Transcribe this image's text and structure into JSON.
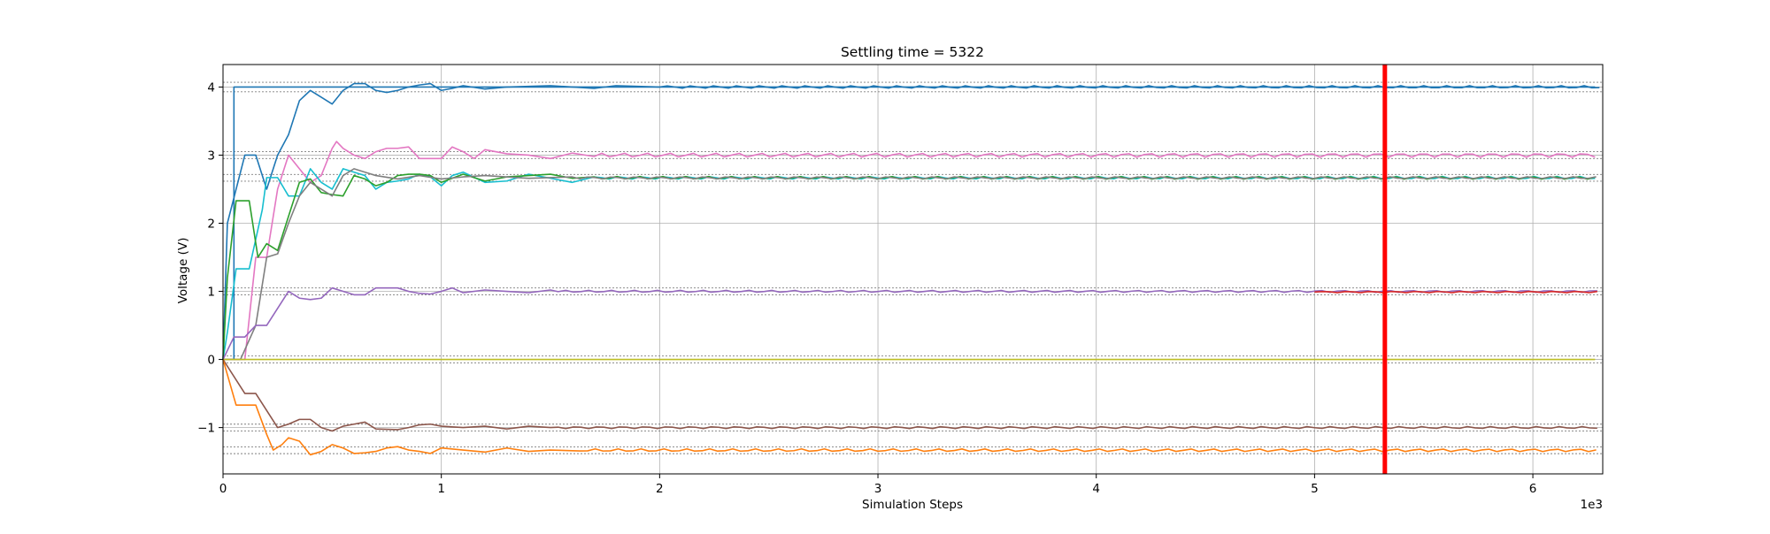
{
  "chart_data": {
    "type": "line",
    "title": "Settling time = 5322",
    "xlabel": "Simulation Steps",
    "ylabel": "Voltage (V)",
    "x_multiplier_label": "1e3",
    "xlim": [
      0,
      6.32
    ],
    "ylim": [
      -1.68,
      4.33
    ],
    "xticks": [
      0,
      1,
      2,
      3,
      4,
      5,
      6
    ],
    "xtick_labels": [
      "0",
      "1",
      "2",
      "3",
      "4",
      "5",
      "6"
    ],
    "yticks": [
      -1,
      0,
      1,
      2,
      3,
      4
    ],
    "ytick_labels": [
      "−1",
      "0",
      "1",
      "2",
      "3",
      "4"
    ],
    "grid": true,
    "settling_time_line": {
      "x": 5.322,
      "color": "#ff0000"
    },
    "tolerance_bands": [
      {
        "center": 4.0,
        "half_width": 0.07
      },
      {
        "center": 3.0,
        "half_width": 0.05
      },
      {
        "center": 2.667,
        "half_width": 0.05
      },
      {
        "center": 1.0,
        "half_width": 0.05
      },
      {
        "center": 0.0,
        "half_width": 0.05
      },
      {
        "center": -1.0,
        "half_width": 0.05
      },
      {
        "center": -1.333,
        "half_width": 0.05
      }
    ],
    "series": [
      {
        "color": "#1f77b4",
        "x": [
          0,
          0.05,
          0.05,
          0.3
        ],
        "y": [
          0,
          0,
          4.0,
          4.0
        ],
        "steady": 4.0,
        "amp": 0.0,
        "step": true
      },
      {
        "color": "#1f77b4",
        "x": [
          0,
          0.02,
          0.1,
          0.15,
          0.2,
          0.25,
          0.3,
          0.33,
          0.35,
          0.4,
          0.45,
          0.5,
          0.55,
          0.6,
          0.65,
          0.7,
          0.75,
          0.8,
          0.85,
          0.9,
          0.95,
          1.0,
          1.05,
          1.1,
          1.2,
          1.3,
          1.5,
          1.7,
          1.8,
          2.0
        ],
        "y": [
          0,
          2.0,
          3.0,
          3.0,
          2.5,
          3.0,
          3.3,
          3.6,
          3.8,
          3.95,
          3.85,
          3.75,
          3.95,
          4.05,
          4.05,
          3.95,
          3.92,
          3.95,
          4.0,
          4.03,
          4.05,
          3.95,
          3.98,
          4.02,
          3.97,
          4.0,
          4.02,
          3.98,
          4.02,
          4.0
        ],
        "steady": 4.0,
        "amp": 0.02
      },
      {
        "color": "#e377c2",
        "x": [
          0,
          0.1,
          0.15,
          0.2,
          0.25,
          0.3,
          0.35,
          0.4,
          0.45,
          0.5,
          0.52,
          0.55,
          0.6,
          0.65,
          0.7,
          0.75,
          0.8,
          0.85,
          0.9,
          1.0,
          1.05,
          1.1,
          1.15,
          1.2,
          1.3,
          1.4,
          1.5,
          1.6,
          1.7
        ],
        "y": [
          0,
          0,
          1.5,
          1.5,
          2.5,
          3.0,
          2.8,
          2.6,
          2.7,
          3.1,
          3.2,
          3.1,
          3.0,
          2.95,
          3.05,
          3.1,
          3.1,
          3.12,
          2.95,
          2.95,
          3.12,
          3.05,
          2.95,
          3.08,
          3.02,
          3.0,
          2.95,
          3.03,
          2.98
        ],
        "steady": 3.0,
        "amp": 0.03
      },
      {
        "color": "#17becf",
        "x": [
          0,
          0.02,
          0.06,
          0.12,
          0.18,
          0.2,
          0.25,
          0.3,
          0.35,
          0.4,
          0.45,
          0.5,
          0.55,
          0.6,
          0.65,
          0.7,
          0.75,
          0.8,
          0.85,
          0.9,
          0.95,
          1.0,
          1.05,
          1.1,
          1.2,
          1.3,
          1.4,
          1.5,
          1.6,
          1.7
        ],
        "y": [
          0,
          0.4,
          1.33,
          1.33,
          2.2,
          2.67,
          2.67,
          2.4,
          2.4,
          2.8,
          2.6,
          2.5,
          2.8,
          2.75,
          2.7,
          2.5,
          2.6,
          2.62,
          2.65,
          2.72,
          2.68,
          2.55,
          2.7,
          2.75,
          2.6,
          2.62,
          2.72,
          2.66,
          2.6,
          2.68
        ],
        "steady": 2.667,
        "amp": 0.02
      },
      {
        "color": "#2ca02c",
        "x": [
          0,
          0.02,
          0.06,
          0.12,
          0.16,
          0.2,
          0.25,
          0.3,
          0.35,
          0.4,
          0.45,
          0.5,
          0.55,
          0.6,
          0.65,
          0.7,
          0.75,
          0.8,
          0.85,
          0.9,
          0.95,
          1.0,
          1.1,
          1.2,
          1.3,
          1.4,
          1.5,
          1.6,
          1.7
        ],
        "y": [
          0,
          1.2,
          2.33,
          2.33,
          1.5,
          1.7,
          1.6,
          2.1,
          2.6,
          2.65,
          2.45,
          2.42,
          2.4,
          2.7,
          2.65,
          2.55,
          2.6,
          2.7,
          2.72,
          2.72,
          2.7,
          2.6,
          2.72,
          2.62,
          2.68,
          2.7,
          2.72,
          2.66,
          2.68
        ],
        "steady": 2.667,
        "amp": 0.02
      },
      {
        "color": "#7f7f7f",
        "x": [
          0,
          0.08,
          0.15,
          0.2,
          0.25,
          0.3,
          0.35,
          0.4,
          0.45,
          0.5,
          0.55,
          0.6,
          0.65,
          0.7,
          0.8,
          0.9,
          1.0,
          1.1,
          1.2,
          1.4,
          1.6
        ],
        "y": [
          0,
          0,
          0.5,
          1.5,
          1.55,
          2.0,
          2.4,
          2.6,
          2.5,
          2.4,
          2.7,
          2.8,
          2.75,
          2.7,
          2.65,
          2.7,
          2.65,
          2.68,
          2.7,
          2.66,
          2.68
        ],
        "steady": 2.667,
        "amp": 0.015
      },
      {
        "color": "#9467bd",
        "x": [
          0,
          0.05,
          0.1,
          0.15,
          0.2,
          0.25,
          0.3,
          0.35,
          0.4,
          0.45,
          0.5,
          0.55,
          0.6,
          0.65,
          0.7,
          0.8,
          0.85,
          0.9,
          0.95,
          1.0,
          1.05,
          1.1,
          1.2,
          1.3,
          1.4,
          1.5
        ],
        "y": [
          0,
          0.33,
          0.33,
          0.5,
          0.5,
          0.75,
          1.0,
          0.9,
          0.88,
          0.9,
          1.05,
          1.0,
          0.95,
          0.95,
          1.05,
          1.05,
          1.0,
          0.97,
          0.96,
          1.0,
          1.05,
          0.98,
          1.02,
          1.0,
          0.98,
          1.02
        ],
        "steady": 1.0,
        "amp": 0.015
      },
      {
        "color": "#d62728",
        "x": [
          0,
          5.0
        ],
        "y": [
          0.99,
          0.99
        ],
        "steady": 0.99,
        "amp": 0.01,
        "start": 5.0
      },
      {
        "color": "#bcbd22",
        "x": [
          0,
          0.3
        ],
        "y": [
          0.0,
          0.0
        ],
        "steady": 0.0,
        "amp": 0.0
      },
      {
        "color": "#8c564b",
        "x": [
          0,
          0.1,
          0.15,
          0.2,
          0.25,
          0.3,
          0.35,
          0.4,
          0.45,
          0.5,
          0.55,
          0.6,
          0.65,
          0.7,
          0.8,
          0.85,
          0.9,
          0.95,
          1.0,
          1.1,
          1.2,
          1.3,
          1.4,
          1.5
        ],
        "y": [
          0,
          -0.5,
          -0.5,
          -0.75,
          -1.0,
          -0.95,
          -0.88,
          -0.88,
          -1.0,
          -1.05,
          -0.98,
          -0.95,
          -0.92,
          -1.02,
          -1.03,
          -1.0,
          -0.96,
          -0.95,
          -0.98,
          -1.0,
          -0.98,
          -1.02,
          -0.98,
          -1.0
        ],
        "steady": -1.0,
        "amp": 0.015
      },
      {
        "color": "#ff7f0e",
        "x": [
          0,
          0.06,
          0.12,
          0.15,
          0.2,
          0.23,
          0.27,
          0.3,
          0.35,
          0.4,
          0.45,
          0.5,
          0.55,
          0.6,
          0.65,
          0.7,
          0.75,
          0.8,
          0.85,
          0.9,
          0.95,
          1.0,
          1.1,
          1.2,
          1.3,
          1.4,
          1.5,
          1.6
        ],
        "y": [
          0,
          -0.67,
          -0.67,
          -0.67,
          -1.1,
          -1.33,
          -1.25,
          -1.15,
          -1.2,
          -1.4,
          -1.35,
          -1.25,
          -1.3,
          -1.38,
          -1.37,
          -1.35,
          -1.3,
          -1.28,
          -1.33,
          -1.35,
          -1.38,
          -1.3,
          -1.33,
          -1.36,
          -1.3,
          -1.35,
          -1.33,
          -1.34
        ],
        "steady": -1.333,
        "amp": 0.02
      }
    ]
  }
}
